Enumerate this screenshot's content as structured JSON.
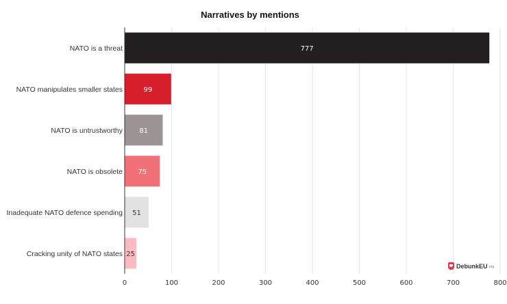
{
  "chart_data": {
    "type": "bar",
    "orientation": "horizontal",
    "title": "Narratives by mentions",
    "categories": [
      "NATO is a threat",
      "NATO manipulates smaller states",
      "NATO is untrustworthy",
      "NATO is obsolete",
      "Inadequate NATO defence spending",
      "Cracking unity of NATO states"
    ],
    "values": [
      777,
      99,
      81,
      75,
      51,
      25
    ],
    "value_labels": [
      "777",
      "99",
      "81",
      "75",
      "51",
      "25"
    ],
    "colors": [
      "#231f20",
      "#d71f2b",
      "#9b9394",
      "#f27178",
      "#e2e2e3",
      "#fbbcc1"
    ],
    "label_colors": [
      "#ffffff",
      "#ffffff",
      "#ffffff",
      "#ffffff",
      "#333333",
      "#333333"
    ],
    "xlim": [
      0,
      800
    ],
    "xticks": [
      0,
      100,
      200,
      300,
      400,
      500,
      600,
      700,
      800
    ],
    "grid": true
  },
  "logo": {
    "name": "DebunkEU",
    "suffix": ".org"
  }
}
